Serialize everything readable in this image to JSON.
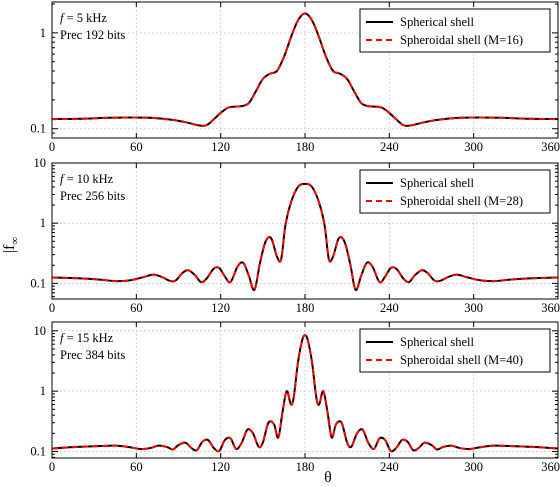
{
  "figure": {
    "ylabel": "|f",
    "ylabel_sub": "∞",
    "xlabel": "θ"
  },
  "chart_data": [
    {
      "type": "line",
      "info_line1_var": "f",
      "info_line1_rest": " = 5 kHz",
      "info_line2": "Prec 192 bits",
      "xlim": [
        0,
        360
      ],
      "ylim": [
        0.08,
        2.1
      ],
      "yscale": "log",
      "grid": true,
      "legend_position": "top-right",
      "x_ticks": [
        "0",
        "60",
        "120",
        "180",
        "240",
        "300",
        "360"
      ],
      "y_ticks": [
        {
          "value": 0.1,
          "label": "0.1"
        },
        {
          "value": 1,
          "label": "1"
        }
      ],
      "series": [
        {
          "name": "Spherical shell",
          "color": "#000000",
          "style": "solid"
        },
        {
          "name": "Spheroidal shell (M=16)",
          "color": "#ff0000",
          "style": "dashed"
        }
      ],
      "points": [
        [
          0,
          0.126
        ],
        [
          20,
          0.127
        ],
        [
          40,
          0.13
        ],
        [
          55,
          0.131
        ],
        [
          70,
          0.13
        ],
        [
          85,
          0.124
        ],
        [
          95,
          0.117
        ],
        [
          105,
          0.108
        ],
        [
          110,
          0.109
        ],
        [
          115,
          0.125
        ],
        [
          120,
          0.146
        ],
        [
          125,
          0.165
        ],
        [
          130,
          0.17
        ],
        [
          135,
          0.172
        ],
        [
          140,
          0.185
        ],
        [
          145,
          0.245
        ],
        [
          150,
          0.33
        ],
        [
          155,
          0.375
        ],
        [
          160,
          0.4
        ],
        [
          165,
          0.56
        ],
        [
          170,
          0.9
        ],
        [
          175,
          1.35
        ],
        [
          180,
          1.6
        ],
        [
          185,
          1.35
        ],
        [
          190,
          0.9
        ],
        [
          195,
          0.56
        ],
        [
          200,
          0.4
        ],
        [
          205,
          0.375
        ],
        [
          210,
          0.33
        ],
        [
          215,
          0.245
        ],
        [
          220,
          0.185
        ],
        [
          225,
          0.172
        ],
        [
          230,
          0.17
        ],
        [
          235,
          0.165
        ],
        [
          240,
          0.146
        ],
        [
          245,
          0.125
        ],
        [
          250,
          0.109
        ],
        [
          255,
          0.108
        ],
        [
          265,
          0.117
        ],
        [
          275,
          0.124
        ],
        [
          290,
          0.13
        ],
        [
          305,
          0.131
        ],
        [
          320,
          0.13
        ],
        [
          340,
          0.127
        ],
        [
          360,
          0.126
        ]
      ]
    },
    {
      "type": "line",
      "info_line1_var": "f",
      "info_line1_rest": " = 10 kHz",
      "info_line2": "Prec 256 bits",
      "xlim": [
        0,
        360
      ],
      "ylim": [
        0.055,
        10
      ],
      "yscale": "log",
      "grid": true,
      "legend_position": "top-right",
      "x_ticks": [
        "0",
        "60",
        "120",
        "180",
        "240",
        "300",
        "360"
      ],
      "y_ticks": [
        {
          "value": 0.1,
          "label": "0.1"
        },
        {
          "value": 1,
          "label": "1"
        },
        {
          "value": 10,
          "label": "10"
        }
      ],
      "series": [
        {
          "name": "Spherical shell",
          "color": "#000000",
          "style": "solid"
        },
        {
          "name": "Spheroidal shell (M=28)",
          "color": "#ff0000",
          "style": "dashed"
        }
      ],
      "points": [
        [
          0,
          0.125
        ],
        [
          20,
          0.121
        ],
        [
          35,
          0.115
        ],
        [
          45,
          0.109
        ],
        [
          55,
          0.112
        ],
        [
          65,
          0.127
        ],
        [
          72,
          0.14
        ],
        [
          78,
          0.128
        ],
        [
          84,
          0.11
        ],
        [
          88,
          0.112
        ],
        [
          93,
          0.15
        ],
        [
          97,
          0.165
        ],
        [
          102,
          0.135
        ],
        [
          106,
          0.105
        ],
        [
          110,
          0.12
        ],
        [
          115,
          0.175
        ],
        [
          119,
          0.18
        ],
        [
          123,
          0.13
        ],
        [
          127,
          0.105
        ],
        [
          132,
          0.19
        ],
        [
          136,
          0.22
        ],
        [
          140,
          0.135
        ],
        [
          144,
          0.078
        ],
        [
          148,
          0.22
        ],
        [
          152,
          0.5
        ],
        [
          156,
          0.56
        ],
        [
          160,
          0.28
        ],
        [
          163,
          0.25
        ],
        [
          166,
          0.9
        ],
        [
          170,
          2.2
        ],
        [
          175,
          4.0
        ],
        [
          180,
          4.5
        ],
        [
          185,
          4.0
        ],
        [
          190,
          2.2
        ],
        [
          194,
          0.9
        ],
        [
          197,
          0.25
        ],
        [
          200,
          0.28
        ],
        [
          204,
          0.56
        ],
        [
          208,
          0.5
        ],
        [
          212,
          0.22
        ],
        [
          216,
          0.078
        ],
        [
          220,
          0.135
        ],
        [
          224,
          0.22
        ],
        [
          228,
          0.19
        ],
        [
          233,
          0.105
        ],
        [
          237,
          0.13
        ],
        [
          241,
          0.18
        ],
        [
          245,
          0.175
        ],
        [
          250,
          0.12
        ],
        [
          254,
          0.105
        ],
        [
          258,
          0.135
        ],
        [
          263,
          0.165
        ],
        [
          267,
          0.15
        ],
        [
          272,
          0.112
        ],
        [
          276,
          0.11
        ],
        [
          282,
          0.128
        ],
        [
          288,
          0.14
        ],
        [
          295,
          0.127
        ],
        [
          305,
          0.112
        ],
        [
          315,
          0.109
        ],
        [
          325,
          0.115
        ],
        [
          340,
          0.121
        ],
        [
          360,
          0.125
        ]
      ]
    },
    {
      "type": "line",
      "info_line1_var": "f",
      "info_line1_rest": " = 15 kHz",
      "info_line2": "Prec 384 bits",
      "xlim": [
        0,
        360
      ],
      "ylim": [
        0.078,
        14
      ],
      "yscale": "log",
      "grid": true,
      "legend_position": "top-right",
      "x_ticks": [
        "0",
        "60",
        "120",
        "180",
        "240",
        "300",
        "360"
      ],
      "y_ticks": [
        {
          "value": 0.1,
          "label": "0.1"
        },
        {
          "value": 1,
          "label": "1"
        },
        {
          "value": 10,
          "label": "10"
        }
      ],
      "series": [
        {
          "name": "Spherical shell",
          "color": "#000000",
          "style": "solid"
        },
        {
          "name": "Spheroidal shell (M=40)",
          "color": "#ff0000",
          "style": "dashed"
        }
      ],
      "points": [
        [
          0,
          0.112
        ],
        [
          15,
          0.118
        ],
        [
          30,
          0.122
        ],
        [
          45,
          0.125
        ],
        [
          55,
          0.118
        ],
        [
          63,
          0.11
        ],
        [
          70,
          0.114
        ],
        [
          76,
          0.125
        ],
        [
          82,
          0.118
        ],
        [
          86,
          0.108
        ],
        [
          90,
          0.128
        ],
        [
          95,
          0.14
        ],
        [
          99,
          0.115
        ],
        [
          103,
          0.105
        ],
        [
          107,
          0.145
        ],
        [
          111,
          0.155
        ],
        [
          115,
          0.115
        ],
        [
          119,
          0.102
        ],
        [
          123,
          0.155
        ],
        [
          127,
          0.165
        ],
        [
          131,
          0.11
        ],
        [
          135,
          0.14
        ],
        [
          139,
          0.23
        ],
        [
          143,
          0.2
        ],
        [
          147,
          0.12
        ],
        [
          150,
          0.14
        ],
        [
          154,
          0.3
        ],
        [
          158,
          0.28
        ],
        [
          161,
          0.17
        ],
        [
          164,
          0.45
        ],
        [
          167,
          1.0
        ],
        [
          170,
          0.6
        ],
        [
          172,
          0.8
        ],
        [
          175,
          3.0
        ],
        [
          178,
          7.0
        ],
        [
          180,
          8.5
        ],
        [
          182,
          7.0
        ],
        [
          185,
          3.0
        ],
        [
          188,
          0.8
        ],
        [
          190,
          0.6
        ],
        [
          193,
          1.0
        ],
        [
          196,
          0.45
        ],
        [
          199,
          0.17
        ],
        [
          202,
          0.28
        ],
        [
          206,
          0.3
        ],
        [
          210,
          0.14
        ],
        [
          213,
          0.12
        ],
        [
          217,
          0.2
        ],
        [
          221,
          0.23
        ],
        [
          225,
          0.14
        ],
        [
          229,
          0.11
        ],
        [
          233,
          0.165
        ],
        [
          237,
          0.155
        ],
        [
          241,
          0.102
        ],
        [
          245,
          0.115
        ],
        [
          249,
          0.155
        ],
        [
          253,
          0.145
        ],
        [
          257,
          0.105
        ],
        [
          261,
          0.115
        ],
        [
          265,
          0.14
        ],
        [
          270,
          0.128
        ],
        [
          274,
          0.108
        ],
        [
          278,
          0.118
        ],
        [
          284,
          0.125
        ],
        [
          290,
          0.114
        ],
        [
          297,
          0.11
        ],
        [
          305,
          0.118
        ],
        [
          315,
          0.125
        ],
        [
          330,
          0.122
        ],
        [
          345,
          0.118
        ],
        [
          360,
          0.112
        ]
      ]
    }
  ]
}
